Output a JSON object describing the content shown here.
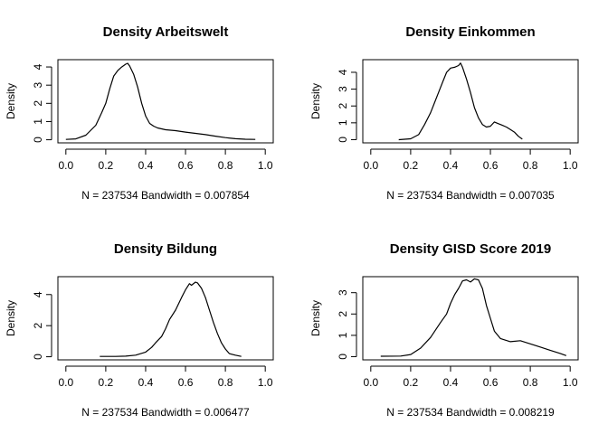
{
  "chart_data": [
    {
      "type": "line",
      "title": "Density Arbeitswelt",
      "xlabel": "N = 237534   Bandwidth = 0.007854",
      "ylabel": "Density",
      "xlim": [
        -0.04,
        1.04
      ],
      "ylim": [
        -0.17,
        4.4
      ],
      "x_ticks": [
        "0.0",
        "0.2",
        "0.4",
        "0.6",
        "0.8",
        "1.0"
      ],
      "y_ticks": [
        "0",
        "1",
        "2",
        "3",
        "4"
      ],
      "grid": false,
      "series": [
        {
          "x": [
            0.0,
            0.05,
            0.1,
            0.15,
            0.18,
            0.2,
            0.22,
            0.24,
            0.26,
            0.28,
            0.3,
            0.31,
            0.32,
            0.34,
            0.36,
            0.38,
            0.4,
            0.42,
            0.44,
            0.46,
            0.5,
            0.55,
            0.6,
            0.65,
            0.7,
            0.75,
            0.8,
            0.85,
            0.9,
            0.95
          ],
          "y": [
            0.02,
            0.05,
            0.25,
            0.8,
            1.5,
            2.0,
            2.8,
            3.5,
            3.8,
            4.0,
            4.15,
            4.2,
            4.05,
            3.6,
            2.9,
            2.0,
            1.3,
            0.9,
            0.75,
            0.65,
            0.55,
            0.5,
            0.42,
            0.35,
            0.28,
            0.2,
            0.12,
            0.06,
            0.03,
            0.02
          ]
        }
      ]
    },
    {
      "type": "line",
      "title": "Density Einkommen",
      "xlabel": "N = 237534   Bandwidth = 0.007035",
      "ylabel": "Density",
      "xlim": [
        -0.04,
        1.04
      ],
      "ylim": [
        -0.19,
        4.75
      ],
      "x_ticks": [
        "0.0",
        "0.2",
        "0.4",
        "0.6",
        "0.8",
        "1.0"
      ],
      "y_ticks": [
        "0",
        "1",
        "2",
        "3",
        "4"
      ],
      "grid": false,
      "series": [
        {
          "x": [
            0.14,
            0.2,
            0.24,
            0.27,
            0.3,
            0.32,
            0.34,
            0.36,
            0.38,
            0.4,
            0.42,
            0.44,
            0.45,
            0.46,
            0.48,
            0.5,
            0.52,
            0.54,
            0.56,
            0.58,
            0.6,
            0.62,
            0.64,
            0.66,
            0.68,
            0.7,
            0.72,
            0.74,
            0.76
          ],
          "y": [
            0.0,
            0.05,
            0.3,
            0.9,
            1.6,
            2.2,
            2.8,
            3.4,
            4.0,
            4.25,
            4.3,
            4.4,
            4.55,
            4.3,
            3.6,
            2.8,
            1.9,
            1.3,
            0.9,
            0.75,
            0.8,
            1.05,
            0.95,
            0.85,
            0.75,
            0.6,
            0.45,
            0.2,
            0.03
          ]
        }
      ]
    },
    {
      "type": "line",
      "title": "Density Bildung",
      "xlabel": "N = 237534   Bandwidth = 0.006477",
      "ylabel": "Density",
      "xlim": [
        -0.04,
        1.04
      ],
      "ylim": [
        -0.2,
        5.15
      ],
      "x_ticks": [
        "0.0",
        "0.2",
        "0.4",
        "0.6",
        "0.8",
        "1.0"
      ],
      "y_ticks": [
        "0",
        "2",
        "4"
      ],
      "grid": false,
      "series": [
        {
          "x": [
            0.17,
            0.25,
            0.3,
            0.35,
            0.4,
            0.43,
            0.45,
            0.48,
            0.5,
            0.52,
            0.55,
            0.58,
            0.6,
            0.62,
            0.63,
            0.65,
            0.66,
            0.68,
            0.7,
            0.72,
            0.74,
            0.76,
            0.78,
            0.8,
            0.82,
            0.85,
            0.88
          ],
          "y": [
            0.02,
            0.02,
            0.04,
            0.1,
            0.3,
            0.6,
            0.9,
            1.3,
            1.8,
            2.4,
            3.0,
            3.8,
            4.3,
            4.7,
            4.6,
            4.8,
            4.75,
            4.4,
            3.8,
            3.0,
            2.2,
            1.5,
            0.9,
            0.5,
            0.2,
            0.1,
            0.02
          ]
        }
      ]
    },
    {
      "type": "line",
      "title": "Density GISD Score 2019",
      "xlabel": "N = 237534   Bandwidth = 0.008219",
      "ylabel": "Density",
      "xlim": [
        -0.04,
        1.04
      ],
      "ylim": [
        -0.15,
        3.75
      ],
      "x_ticks": [
        "0.0",
        "0.2",
        "0.4",
        "0.6",
        "0.8",
        "1.0"
      ],
      "y_ticks": [
        "0",
        "1",
        "2",
        "3"
      ],
      "grid": false,
      "series": [
        {
          "x": [
            0.05,
            0.15,
            0.2,
            0.25,
            0.3,
            0.35,
            0.38,
            0.4,
            0.42,
            0.44,
            0.46,
            0.48,
            0.5,
            0.52,
            0.54,
            0.56,
            0.58,
            0.6,
            0.62,
            0.65,
            0.7,
            0.75,
            0.8,
            0.85,
            0.9,
            0.95,
            0.98
          ],
          "y": [
            0.02,
            0.03,
            0.1,
            0.4,
            0.9,
            1.6,
            2.0,
            2.5,
            2.9,
            3.2,
            3.55,
            3.6,
            3.5,
            3.65,
            3.6,
            3.2,
            2.4,
            1.8,
            1.2,
            0.85,
            0.7,
            0.75,
            0.6,
            0.45,
            0.3,
            0.15,
            0.05
          ]
        }
      ]
    }
  ]
}
